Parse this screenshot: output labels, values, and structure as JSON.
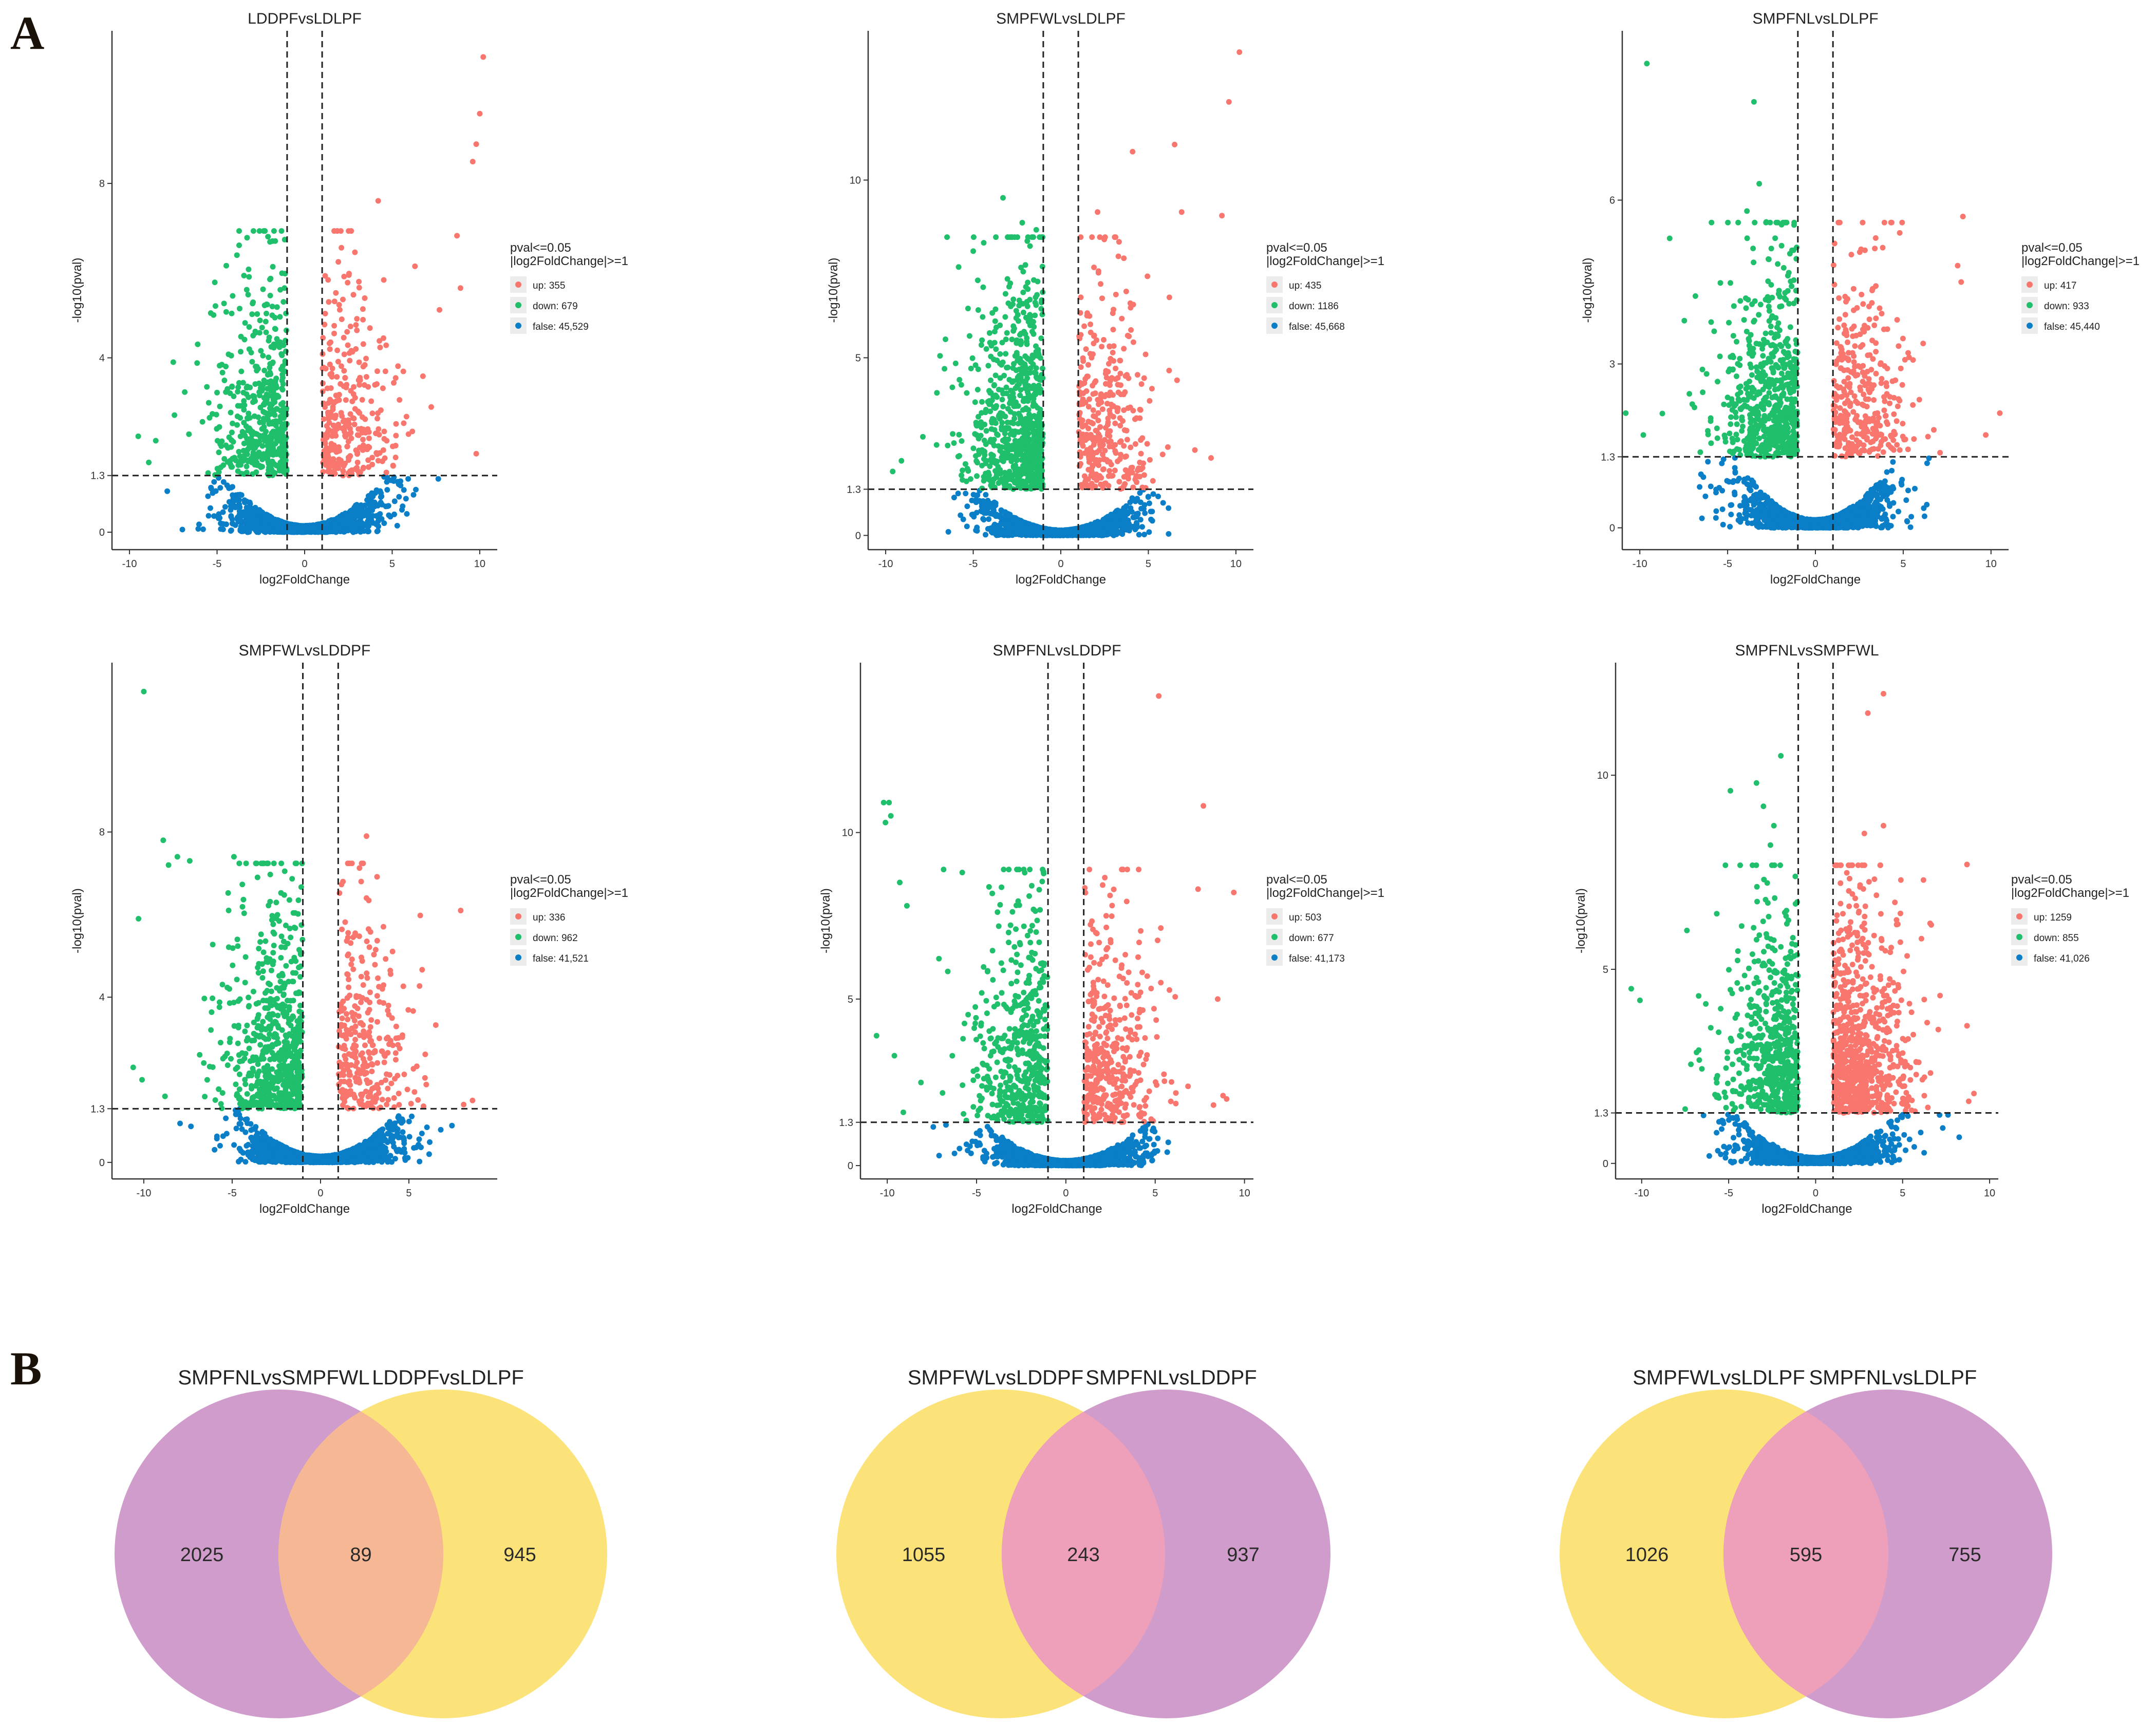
{
  "panel_labels": {
    "a": "A",
    "b": "B"
  },
  "colors": {
    "up": "#f8766d",
    "down": "#1fbf6b",
    "false": "#0a7fc8",
    "venn_purple": "#cf9ccb",
    "venn_yellow": "#fbe37a",
    "venn_orange_overlap": "#f6b894",
    "venn_pink_overlap": "#ee9fb9"
  },
  "chart_data": [
    {
      "type": "scatter",
      "title": "LDDPFvsLDLPF",
      "xlabel": "log2FoldChange",
      "ylabel": "-log10(pval)",
      "xticks": [
        "-10",
        "-5",
        "0",
        "5",
        "10"
      ],
      "xtick_values": [
        -10,
        -5,
        0,
        5,
        10
      ],
      "yticks": [
        "0",
        "1.3",
        "4",
        "8"
      ],
      "ytick_values": [
        0,
        1.3,
        4,
        8
      ],
      "xlim": [
        -11,
        11
      ],
      "ylim": [
        -0.4,
        11.5
      ],
      "fc_threshold": [
        -1,
        1
      ],
      "p_threshold": 1.3,
      "legend_title": [
        "pval<=0.05",
        "|log2FoldChange|>=1"
      ],
      "legend": [
        {
          "key": "up",
          "label": "up: 355"
        },
        {
          "key": "down",
          "label": "down: 679"
        },
        {
          "key": "false",
          "label": "false: 45,529"
        }
      ],
      "counts": {
        "up": 355,
        "down": 679,
        "false": 45529
      },
      "up_points": [
        [
          10.2,
          10.9
        ],
        [
          10.0,
          9.6
        ],
        [
          9.8,
          8.9
        ],
        [
          9.6,
          8.5
        ],
        [
          4.2,
          7.6
        ],
        [
          8.7,
          6.8
        ],
        [
          6.3,
          6.1
        ],
        [
          8.9,
          5.6
        ],
        [
          7.7,
          5.1
        ],
        [
          9.8,
          1.8
        ]
      ],
      "down_points": [
        [
          -3.0,
          5.0
        ],
        [
          -3.4,
          4.8
        ],
        [
          -4.5,
          3.8
        ],
        [
          -2.8,
          3.8
        ],
        [
          -7.5,
          3.9
        ],
        [
          -8.5,
          2.1
        ],
        [
          -9.5,
          2.2
        ],
        [
          -8.9,
          1.6
        ]
      ]
    },
    {
      "type": "scatter",
      "title": "SMPFWLvsLDLPF",
      "xlabel": "log2FoldChange",
      "ylabel": "-log10(pval)",
      "xticks": [
        "-10",
        "-5",
        "0",
        "5",
        "10"
      ],
      "xtick_values": [
        -10,
        -5,
        0,
        5,
        10
      ],
      "yticks": [
        "0",
        "1.3",
        "5",
        "10"
      ],
      "ytick_values": [
        0,
        1.3,
        5,
        10
      ],
      "xlim": [
        -11,
        11
      ],
      "ylim": [
        -0.4,
        14.2
      ],
      "fc_threshold": [
        -1,
        1
      ],
      "p_threshold": 1.3,
      "legend_title": [
        "pval<=0.05",
        "|log2FoldChange|>=1"
      ],
      "legend": [
        {
          "key": "up",
          "label": "up: 435"
        },
        {
          "key": "down",
          "label": "down: 1186"
        },
        {
          "key": "false",
          "label": "false: 45,668"
        }
      ],
      "counts": {
        "up": 435,
        "down": 1186,
        "false": 45668
      },
      "up_points": [
        [
          10.2,
          13.6
        ],
        [
          9.6,
          12.2
        ],
        [
          6.5,
          11.0
        ],
        [
          4.1,
          10.8
        ],
        [
          9.2,
          9.0
        ],
        [
          6.9,
          9.1
        ],
        [
          2.1,
          9.1
        ],
        [
          3.6,
          7.8
        ],
        [
          6.2,
          6.7
        ]
      ],
      "down_points": [
        [
          -3.3,
          9.5
        ],
        [
          -5.0,
          8.0
        ],
        [
          -2.2,
          8.8
        ],
        [
          -1.4,
          8.6
        ],
        [
          -9.1,
          2.1
        ],
        [
          -9.6,
          1.8
        ]
      ]
    },
    {
      "type": "scatter",
      "title": "SMPFNLvsLDLPF",
      "xlabel": "log2FoldChange",
      "ylabel": "-log10(pval)",
      "xticks": [
        "-10",
        "-5",
        "0",
        "5",
        "10"
      ],
      "xtick_values": [
        -10,
        -5,
        0,
        5,
        10
      ],
      "yticks": [
        "0",
        "1.3",
        "3",
        "6"
      ],
      "ytick_values": [
        0,
        1.3,
        3,
        6
      ],
      "xlim": [
        -11,
        11
      ],
      "ylim": [
        -0.4,
        9.1
      ],
      "fc_threshold": [
        -1,
        1
      ],
      "p_threshold": 1.3,
      "legend_title": [
        "pval<=0.05",
        "|log2FoldChange|>=1"
      ],
      "legend": [
        {
          "key": "up",
          "label": "up: 417"
        },
        {
          "key": "down",
          "label": "down: 933"
        },
        {
          "key": "false",
          "label": "false: 45,440"
        }
      ],
      "counts": {
        "up": 417,
        "down": 933,
        "false": 45440
      },
      "up_points": [
        [
          8.4,
          5.7
        ],
        [
          4.8,
          5.4
        ],
        [
          8.1,
          4.8
        ],
        [
          8.3,
          4.5
        ],
        [
          2.6,
          5.1
        ],
        [
          10.5,
          2.1
        ],
        [
          9.7,
          1.7
        ]
      ],
      "down_points": [
        [
          -9.6,
          8.5
        ],
        [
          -3.5,
          7.8
        ],
        [
          -3.2,
          6.3
        ],
        [
          -3.9,
          5.8
        ],
        [
          -2.8,
          5.6
        ],
        [
          -8.3,
          5.3
        ],
        [
          -10.8,
          2.1
        ],
        [
          -9.8,
          1.7
        ]
      ]
    },
    {
      "type": "scatter",
      "title": "SMPFWLvsLDDPF",
      "xlabel": "log2FoldChange",
      "ylabel": "-log10(pval)",
      "xticks": [
        "-10",
        "-5",
        "0",
        "5"
      ],
      "xtick_values": [
        -10,
        -5,
        0,
        5
      ],
      "yticks": [
        "0",
        "1.3",
        "4",
        "8"
      ],
      "ytick_values": [
        0,
        1.3,
        4,
        8
      ],
      "xlim": [
        -11.8,
        10
      ],
      "ylim": [
        -0.4,
        12.1
      ],
      "fc_threshold": [
        -1,
        1
      ],
      "p_threshold": 1.3,
      "legend_title": [
        "pval<=0.05",
        "|log2FoldChange|>=1"
      ],
      "legend": [
        {
          "key": "up",
          "label": "up: 336"
        },
        {
          "key": "down",
          "label": "down: 962"
        },
        {
          "key": "false",
          "label": "false: 41,521"
        }
      ],
      "counts": {
        "up": 336,
        "down": 962,
        "false": 41521
      },
      "up_points": [
        [
          2.6,
          7.9
        ],
        [
          2.3,
          6.8
        ],
        [
          2.6,
          6.4
        ],
        [
          3.5,
          4.2
        ],
        [
          8.6,
          1.5
        ],
        [
          8.1,
          1.4
        ]
      ],
      "down_points": [
        [
          -10.0,
          11.4
        ],
        [
          -8.9,
          7.8
        ],
        [
          -8.1,
          7.4
        ],
        [
          -8.6,
          7.2
        ],
        [
          -7.4,
          7.3
        ],
        [
          -4.9,
          7.4
        ],
        [
          -10.3,
          5.9
        ],
        [
          -5.2,
          6.1
        ],
        [
          -10.6,
          2.3
        ],
        [
          -10.1,
          2.0
        ],
        [
          -8.8,
          1.6
        ]
      ]
    },
    {
      "type": "scatter",
      "title": "SMPFNLvsLDDPF",
      "xlabel": "log2FoldChange",
      "ylabel": "-log10(pval)",
      "xticks": [
        "-10",
        "-5",
        "0",
        "5",
        "10"
      ],
      "xtick_values": [
        -10,
        -5,
        0,
        5,
        10
      ],
      "yticks": [
        "0",
        "1.3",
        "5",
        "10"
      ],
      "ytick_values": [
        0,
        1.3,
        5,
        10
      ],
      "xlim": [
        -11.5,
        10.5
      ],
      "ylim": [
        -0.4,
        15.1
      ],
      "fc_threshold": [
        -1,
        1
      ],
      "p_threshold": 1.3,
      "legend_title": [
        "pval<=0.05",
        "|log2FoldChange|>=1"
      ],
      "legend": [
        {
          "key": "up",
          "label": "up: 503"
        },
        {
          "key": "down",
          "label": "down: 677"
        },
        {
          "key": "false",
          "label": "false: 41,173"
        }
      ],
      "counts": {
        "up": 503,
        "down": 677,
        "false": 41173
      },
      "up_points": [
        [
          5.2,
          14.1
        ],
        [
          7.7,
          10.8
        ],
        [
          7.4,
          8.3
        ],
        [
          9.4,
          8.2
        ],
        [
          4.1,
          6.7
        ],
        [
          8.5,
          5.0
        ],
        [
          8.8,
          2.1
        ],
        [
          9.0,
          2.0
        ]
      ],
      "down_points": [
        [
          -10.2,
          10.9
        ],
        [
          -9.9,
          10.9
        ],
        [
          -10.1,
          10.3
        ],
        [
          -9.8,
          10.5
        ],
        [
          -9.3,
          8.5
        ],
        [
          -5.8,
          8.8
        ],
        [
          -8.9,
          7.8
        ],
        [
          -2.8,
          7.1
        ],
        [
          -10.6,
          3.9
        ],
        [
          -9.6,
          3.3
        ],
        [
          -9.1,
          1.6
        ]
      ]
    },
    {
      "type": "scatter",
      "title": "SMPFNLvsSMPFWL",
      "xlabel": "log2FoldChange",
      "ylabel": "-log10(pval)",
      "xticks": [
        "-10",
        "-5",
        "0",
        "5",
        "10"
      ],
      "xtick_values": [
        -10,
        -5,
        0,
        5,
        10
      ],
      "yticks": [
        "0",
        "1.3",
        "5",
        "10"
      ],
      "ytick_values": [
        0,
        1.3,
        5,
        10
      ],
      "xlim": [
        -11.5,
        10.5
      ],
      "ylim": [
        -0.4,
        12.9
      ],
      "fc_threshold": [
        -1,
        1
      ],
      "p_threshold": 1.3,
      "legend_title": [
        "pval<=0.05",
        "|log2FoldChange|>=1"
      ],
      "legend": [
        {
          "key": "up",
          "label": "up: 1259"
        },
        {
          "key": "down",
          "label": "down: 855"
        },
        {
          "key": "false",
          "label": "false: 41,026"
        }
      ],
      "counts": {
        "up": 1259,
        "down": 855,
        "false": 41026
      },
      "up_points": [
        [
          3.9,
          12.1
        ],
        [
          3.0,
          11.6
        ],
        [
          3.9,
          8.7
        ],
        [
          2.8,
          8.5
        ],
        [
          8.7,
          7.7
        ],
        [
          4.9,
          7.3
        ],
        [
          6.2,
          7.3
        ],
        [
          8.8,
          1.6
        ],
        [
          9.1,
          1.8
        ]
      ],
      "down_points": [
        [
          -2.0,
          10.5
        ],
        [
          -3.4,
          9.8
        ],
        [
          -4.9,
          9.6
        ],
        [
          -3.0,
          9.2
        ],
        [
          -2.4,
          8.7
        ],
        [
          -2.6,
          8.2
        ],
        [
          -7.4,
          6.0
        ],
        [
          -10.6,
          4.5
        ],
        [
          -10.1,
          4.2
        ],
        [
          -7.5,
          1.4
        ]
      ]
    }
  ],
  "venns": [
    {
      "left_label": "SMPFNLvsSMPFWL",
      "right_label": "LDDPFvsLDLPF",
      "left_only": "2025",
      "overlap": "89",
      "right_only": "945",
      "left_color": "#cf9ccb",
      "right_color": "#fbe37a",
      "overlap_color": "#f6b894"
    },
    {
      "left_label": "SMPFWLvsLDDPF",
      "right_label": "SMPFNLvsLDDPF",
      "left_only": "1055",
      "overlap": "243",
      "right_only": "937",
      "left_color": "#fbe37a",
      "right_color": "#cf9ccb",
      "overlap_color": "#ee9fb9"
    },
    {
      "left_label": "SMPFWLvsLDLPF",
      "right_label": "SMPFNLvsLDLPF",
      "left_only": "1026",
      "overlap": "595",
      "right_only": "755",
      "left_color": "#fbe37a",
      "right_color": "#cf9ccb",
      "overlap_color": "#ee9fb9"
    }
  ]
}
